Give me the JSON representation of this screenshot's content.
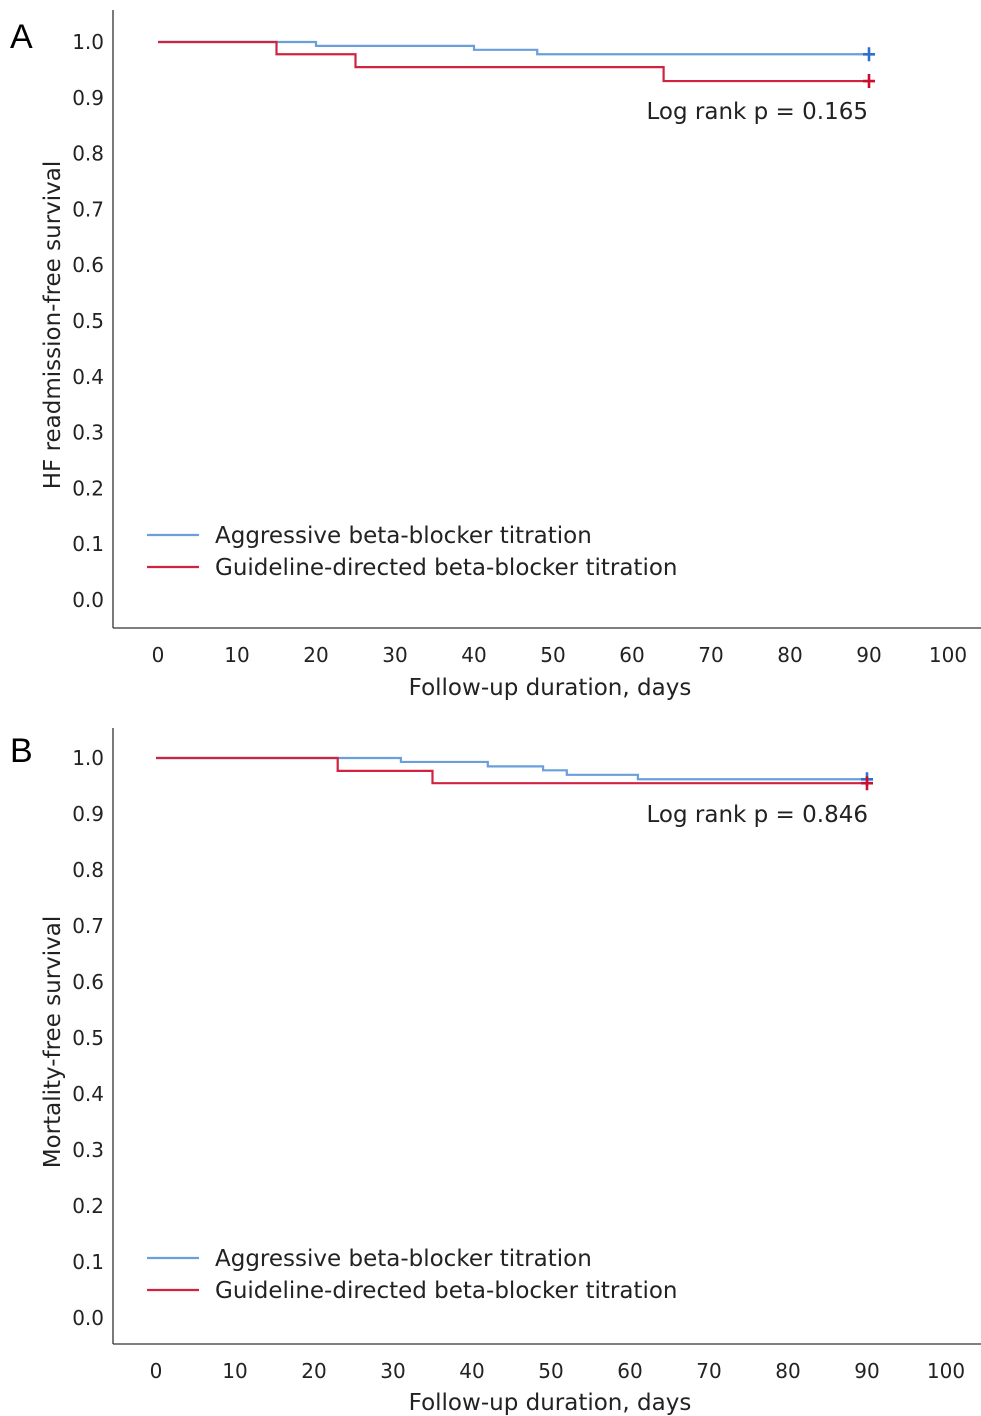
{
  "chart_data": [
    {
      "panel": "A",
      "type": "line",
      "step": true,
      "xlabel": "Follow-up duration, days",
      "ylabel": "HF readmission-free survival",
      "xlim": [
        0,
        100
      ],
      "ylim": [
        0.0,
        1.0
      ],
      "xticks": [
        "0",
        "10",
        "20",
        "30",
        "40",
        "50",
        "60",
        "70",
        "80",
        "90",
        "100"
      ],
      "yticks": [
        "0.0",
        "0.1",
        "0.2",
        "0.3",
        "0.4",
        "0.5",
        "0.6",
        "0.7",
        "0.8",
        "0.9",
        "1.0"
      ],
      "grid": false,
      "legend_position": "bottom-left",
      "annotation": "Log rank p = 0.165",
      "series": [
        {
          "name": "Aggressive beta-blocker titration",
          "color": "#6a9fdc",
          "censor_color": "#2f6fce",
          "x": [
            0,
            20,
            40,
            48,
            90
          ],
          "y": [
            1.0,
            0.993,
            0.986,
            0.978,
            0.978
          ],
          "censored": [
            {
              "x": 90,
              "y": 0.978
            }
          ]
        },
        {
          "name": "Guideline-directed beta-blocker titration",
          "color": "#cf2340",
          "censor_color": "#c8102e",
          "x": [
            0,
            15,
            25,
            64,
            90
          ],
          "y": [
            1.0,
            0.978,
            0.955,
            0.93,
            0.93
          ],
          "censored": [
            {
              "x": 90,
              "y": 0.93
            }
          ]
        }
      ]
    },
    {
      "panel": "B",
      "type": "line",
      "step": true,
      "xlabel": "Follow-up duration, days",
      "ylabel": "Mortality-free survival",
      "xlim": [
        0,
        100
      ],
      "ylim": [
        0.0,
        1.0
      ],
      "xticks": [
        "0",
        "10",
        "20",
        "30",
        "40",
        "50",
        "60",
        "70",
        "80",
        "90",
        "100"
      ],
      "yticks": [
        "0.0",
        "0.1",
        "0.2",
        "0.3",
        "0.4",
        "0.5",
        "0.6",
        "0.7",
        "0.8",
        "0.9",
        "1.0"
      ],
      "grid": false,
      "legend_position": "bottom-left",
      "annotation": "Log rank p = 0.846",
      "series": [
        {
          "name": "Aggressive beta-blocker titration",
          "color": "#6a9fdc",
          "censor_color": "#2f6fce",
          "x": [
            0,
            23,
            31,
            42,
            49,
            52,
            61,
            90
          ],
          "y": [
            1.0,
            1.0,
            0.993,
            0.985,
            0.978,
            0.97,
            0.962,
            0.962
          ],
          "censored": [
            {
              "x": 90,
              "y": 0.962
            }
          ]
        },
        {
          "name": "Guideline-directed beta-blocker titration",
          "color": "#cf2340",
          "censor_color": "#c8102e",
          "x": [
            0,
            23,
            35,
            90
          ],
          "y": [
            1.0,
            0.977,
            0.955,
            0.955
          ],
          "censored": [
            {
              "x": 90,
              "y": 0.955
            }
          ]
        }
      ]
    }
  ]
}
